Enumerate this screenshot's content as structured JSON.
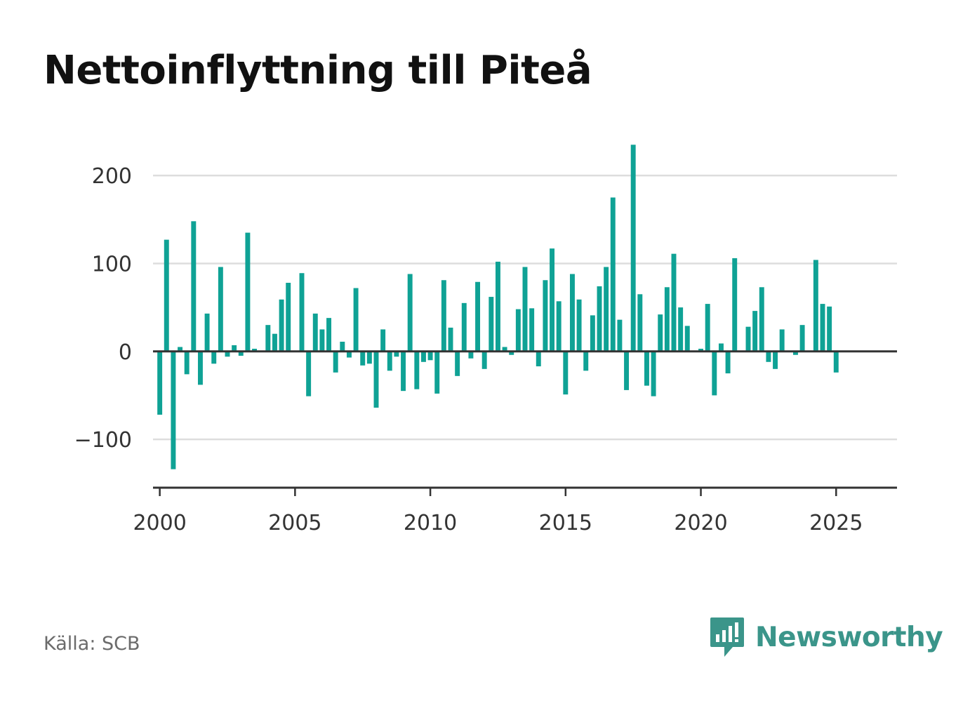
{
  "title": "Nettoinflyttning till Piteå",
  "source": "Källa: SCB",
  "brand": {
    "name": "Newsworthy",
    "icon": "newsworthy-logo-icon",
    "color": "#3b958a"
  },
  "colors": {
    "bar": "#0fa295",
    "grid": "#dddddd",
    "axis": "#333333"
  },
  "chart_data": {
    "type": "bar",
    "title": "Nettoinflyttning till Piteå",
    "xlabel": "",
    "ylabel": "",
    "grid": true,
    "legend": "none",
    "frequency": "quarterly",
    "xlim": [
      1999.75,
      2027.25
    ],
    "ylim": [
      -155,
      240
    ],
    "x_ticks": [
      2000,
      2005,
      2010,
      2015,
      2020,
      2025
    ],
    "x_tick_labels": [
      "2000",
      "2005",
      "2010",
      "2015",
      "2020",
      "2025"
    ],
    "y_ticks": [
      200,
      100,
      0,
      -100
    ],
    "y_tick_labels": [
      "200",
      "100",
      "0",
      "−100"
    ],
    "categories": [
      "2000 Q1",
      "2000 Q2",
      "2000 Q3",
      "2000 Q4",
      "2001 Q1",
      "2001 Q2",
      "2001 Q3",
      "2001 Q4",
      "2002 Q1",
      "2002 Q2",
      "2002 Q3",
      "2002 Q4",
      "2003 Q1",
      "2003 Q2",
      "2003 Q3",
      "2003 Q4",
      "2004 Q1",
      "2004 Q2",
      "2004 Q3",
      "2004 Q4",
      "2005 Q1",
      "2005 Q2",
      "2005 Q3",
      "2005 Q4",
      "2006 Q1",
      "2006 Q2",
      "2006 Q3",
      "2006 Q4",
      "2007 Q1",
      "2007 Q2",
      "2007 Q3",
      "2007 Q4",
      "2008 Q1",
      "2008 Q2",
      "2008 Q3",
      "2008 Q4",
      "2009 Q1",
      "2009 Q2",
      "2009 Q3",
      "2009 Q4",
      "2010 Q1",
      "2010 Q2",
      "2010 Q3",
      "2010 Q4",
      "2011 Q1",
      "2011 Q2",
      "2011 Q3",
      "2011 Q4",
      "2012 Q1",
      "2012 Q2",
      "2012 Q3",
      "2012 Q4",
      "2013 Q1",
      "2013 Q2",
      "2013 Q3",
      "2013 Q4",
      "2014 Q1",
      "2014 Q2",
      "2014 Q3",
      "2014 Q4",
      "2015 Q1",
      "2015 Q2",
      "2015 Q3",
      "2015 Q4",
      "2016 Q1",
      "2016 Q2",
      "2016 Q3",
      "2016 Q4",
      "2017 Q1",
      "2017 Q2",
      "2017 Q3",
      "2017 Q4",
      "2018 Q1",
      "2018 Q2",
      "2018 Q3",
      "2018 Q4",
      "2019 Q1",
      "2019 Q2",
      "2019 Q3",
      "2019 Q4",
      "2020 Q1",
      "2020 Q2",
      "2020 Q3",
      "2020 Q4",
      "2021 Q1",
      "2021 Q2",
      "2021 Q3",
      "2021 Q4",
      "2022 Q1",
      "2022 Q2",
      "2022 Q3",
      "2022 Q4",
      "2023 Q1",
      "2023 Q2",
      "2023 Q3",
      "2023 Q4",
      "2024 Q1",
      "2024 Q2",
      "2024 Q3",
      "2024 Q4",
      "2025 Q1",
      "2025 Q2"
    ],
    "values": [
      -72,
      127,
      -134,
      5,
      -26,
      148,
      -38,
      43,
      -14,
      96,
      -6,
      7,
      -5,
      135,
      3,
      0,
      30,
      20,
      59,
      78,
      0,
      89,
      -51,
      43,
      25,
      38,
      -24,
      11,
      -7,
      72,
      -16,
      -14,
      -64,
      25,
      -22,
      -6,
      -45,
      88,
      -43,
      -12,
      -10,
      -48,
      81,
      27,
      -28,
      55,
      -8,
      79,
      -20,
      62,
      102,
      5,
      -4,
      48,
      96,
      49,
      -17,
      81,
      117,
      57,
      -49,
      88,
      59,
      -22,
      41,
      74,
      96,
      175,
      36,
      -44,
      235,
      65,
      -39,
      -51,
      42,
      73,
      111,
      50,
      29,
      0,
      3,
      54,
      -50,
      9,
      -25,
      106,
      0,
      28,
      46,
      73,
      -12,
      -20,
      25,
      0,
      -4,
      30,
      0,
      104,
      54,
      51,
      -24,
      0
    ]
  }
}
